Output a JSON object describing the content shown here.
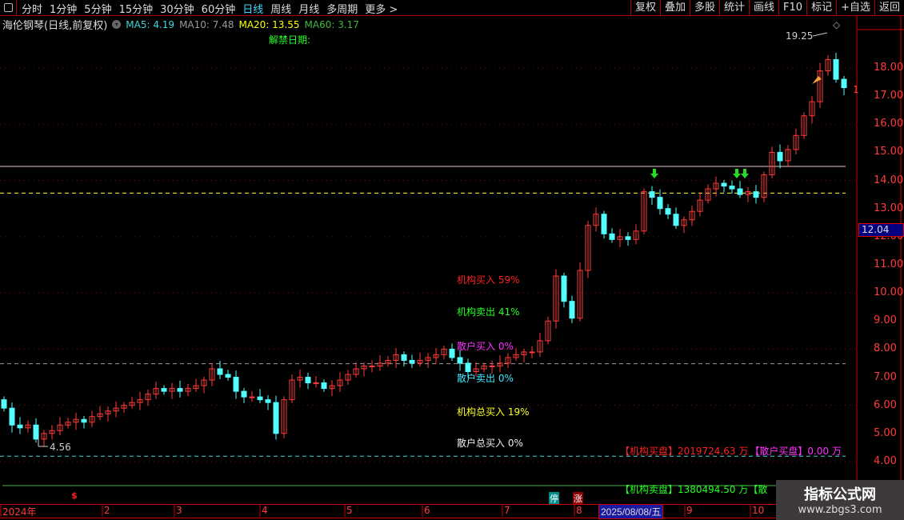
{
  "toolbar": {
    "tabs": [
      "分时",
      "1分钟",
      "5分钟",
      "15分钟",
      "30分钟",
      "60分钟",
      "日线",
      "周线",
      "月线",
      "多周期",
      "更多 >"
    ],
    "active_tab": "日线",
    "right_buttons": [
      "复权",
      "叠加",
      "多股",
      "统计",
      "画线",
      "F10",
      "标记",
      "+自选",
      "返回"
    ]
  },
  "info": {
    "title": "海伦钢琴(日线,前复权)",
    "ma5": "MA5: 4.19",
    "ma10": "MA10: 7.48",
    "ma20": "MA20: 13.55",
    "ma60": "MA60: 3.17",
    "unlock_label": "解禁日期:"
  },
  "indicators": {
    "inst_buy": "机构买入 59%",
    "inst_sell": "机构卖出 41%",
    "retail_buy": "散户买入 0%",
    "retail_sell": "散户卖出 0%",
    "inst_total_buy": "机构总买入 19%",
    "retail_total_buy": "散户总买入 0%",
    "inst_buy_disk": "【机构买盘】2019724.63 万",
    "retail_buy_disk": "【散户买盘】0.00 万",
    "inst_sell_disk": "【机构卖盘】1380494.50 万【散"
  },
  "colors": {
    "up": "#ff3b3b",
    "down": "#54ffff",
    "ma5": "#3fd8d8",
    "ma10": "#9a9a9a",
    "ma20": "#ffff00",
    "ma60": "#3fb83f",
    "axis": "#ff3b3b"
  },
  "chart_data": {
    "type": "candlestick",
    "price_axis_ticks": [
      "18.00",
      "17.00",
      "16.00",
      "15.00",
      "14.00",
      "13.00",
      "12.00",
      "11.00",
      "10.00",
      "9.00",
      "8.00",
      "7.00",
      "6.00",
      "5.00",
      "4.00"
    ],
    "ylim": [
      4,
      18
    ],
    "current_price": "12.04",
    "high_label": "19.25",
    "low_label": "4.56",
    "right_edge_label": "1",
    "horizontal_levels": [
      14.5,
      13.55,
      7.48,
      4.19
    ],
    "closes": [
      5.9,
      5.3,
      5.2,
      5.3,
      4.8,
      5.0,
      5.1,
      5.3,
      5.4,
      5.5,
      5.4,
      5.6,
      5.7,
      5.8,
      5.9,
      6.0,
      6.1,
      6.2,
      6.4,
      6.6,
      6.5,
      6.6,
      6.5,
      6.6,
      6.7,
      6.9,
      7.3,
      7.1,
      7.0,
      6.5,
      6.3,
      6.3,
      6.2,
      6.1,
      5.0,
      6.2,
      6.9,
      7.0,
      6.8,
      6.8,
      6.6,
      6.7,
      6.9,
      7.1,
      7.3,
      7.4,
      7.4,
      7.5,
      7.6,
      7.8,
      7.6,
      7.5,
      7.6,
      7.7,
      7.8,
      8.0,
      7.7,
      7.5,
      7.2,
      7.3,
      7.4,
      7.4,
      7.5,
      7.7,
      7.8,
      7.9,
      7.9,
      8.3,
      9.0,
      10.6,
      9.7,
      9.1,
      10.8,
      12.4,
      12.8,
      12.1,
      11.9,
      12.0,
      11.9,
      12.2,
      13.6,
      13.4,
      13.0,
      12.8,
      12.4,
      12.6,
      12.9,
      13.3,
      13.7,
      13.9,
      13.8,
      13.7,
      13.5,
      13.6,
      13.4,
      14.2,
      15.0,
      14.7,
      15.1,
      15.6,
      16.3,
      16.8,
      17.9,
      18.3,
      17.6,
      17.3
    ],
    "x_axis_labels": [
      "2024年",
      "2",
      "3",
      "4",
      "5",
      "6",
      "7",
      "8",
      "9",
      "10"
    ],
    "selected_date": "2025/08/08/五",
    "markers": {
      "dollar": "$",
      "halt": "停",
      "limit_up": "涨"
    }
  }
}
